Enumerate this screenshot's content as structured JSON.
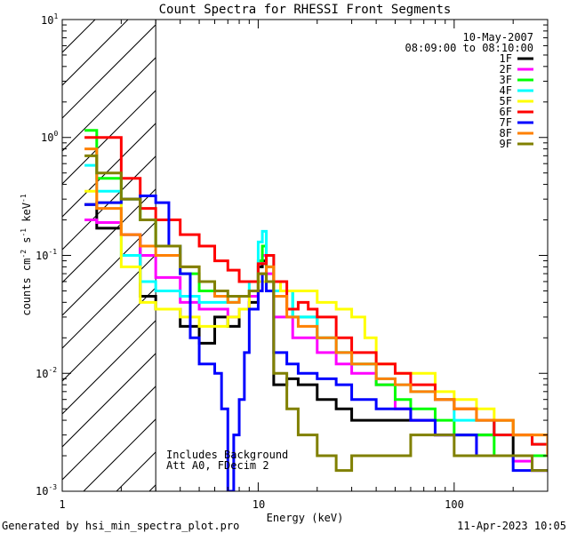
{
  "chart_data": {
    "type": "line",
    "title": "Count Spectra for RHESSI Front Segments",
    "xlabel": "Energy (keV)",
    "ylabel_parts": [
      "counts cm",
      "-2",
      " s",
      "-1",
      " keV",
      "-1"
    ],
    "x_scale": "log",
    "y_scale": "log",
    "xlim": [
      1,
      300
    ],
    "ylim": [
      0.001,
      10
    ],
    "x_ticks": [
      {
        "v": 1,
        "label": "1"
      },
      {
        "v": 10,
        "label": "10"
      },
      {
        "v": 100,
        "label": "100"
      }
    ],
    "y_ticks": [
      {
        "v": 0.001,
        "base": "10",
        "exp": "-3"
      },
      {
        "v": 0.01,
        "base": "10",
        "exp": "-2"
      },
      {
        "v": 0.1,
        "base": "10",
        "exp": "-1"
      },
      {
        "v": 1,
        "base": "10",
        "exp": "0"
      },
      {
        "v": 10,
        "base": "10",
        "exp": "1"
      }
    ],
    "hatch_region": {
      "x_from": 1,
      "x_to": 3
    },
    "date": "10-May-2007",
    "time_range": "08:09:00 to 08:10:00",
    "notes": [
      "Includes Background",
      "Att A0, FDecim 2"
    ],
    "series": [
      {
        "name": "1F",
        "color": "#000000",
        "points": [
          [
            1.3,
            0.27
          ],
          [
            1.5,
            0.17
          ],
          [
            2,
            0.15
          ],
          [
            2.5,
            0.045
          ],
          [
            3,
            0.035
          ],
          [
            4,
            0.025
          ],
          [
            5,
            0.018
          ],
          [
            6,
            0.03
          ],
          [
            7,
            0.025
          ],
          [
            8,
            0.035
          ],
          [
            9,
            0.04
          ],
          [
            10,
            0.08
          ],
          [
            10.5,
            0.09
          ],
          [
            11,
            0.06
          ],
          [
            12,
            0.008
          ],
          [
            14,
            0.009
          ],
          [
            16,
            0.008
          ],
          [
            20,
            0.006
          ],
          [
            25,
            0.005
          ],
          [
            30,
            0.004
          ],
          [
            40,
            0.004
          ],
          [
            50,
            0.004
          ],
          [
            60,
            0.004
          ],
          [
            80,
            0.003
          ],
          [
            100,
            0.003
          ],
          [
            130,
            0.003
          ],
          [
            160,
            0.004
          ],
          [
            200,
            0.002
          ],
          [
            250,
            0.002
          ],
          [
            300,
            0.002
          ]
        ]
      },
      {
        "name": "2F",
        "color": "#ff00ff",
        "points": [
          [
            1.3,
            0.2
          ],
          [
            1.5,
            0.19
          ],
          [
            2,
            0.15
          ],
          [
            2.5,
            0.1
          ],
          [
            3,
            0.065
          ],
          [
            4,
            0.04
          ],
          [
            5,
            0.035
          ],
          [
            6,
            0.035
          ],
          [
            7,
            0.03
          ],
          [
            8,
            0.035
          ],
          [
            9,
            0.045
          ],
          [
            10,
            0.085
          ],
          [
            10.5,
            0.1
          ],
          [
            11,
            0.07
          ],
          [
            12,
            0.03
          ],
          [
            15,
            0.02
          ],
          [
            20,
            0.015
          ],
          [
            25,
            0.012
          ],
          [
            30,
            0.01
          ],
          [
            40,
            0.008
          ],
          [
            50,
            0.005
          ],
          [
            60,
            0.004
          ],
          [
            80,
            0.003
          ],
          [
            100,
            0.003
          ],
          [
            130,
            0.002
          ],
          [
            160,
            0.002
          ],
          [
            200,
            0.0018
          ],
          [
            250,
            0.0015
          ],
          [
            300,
            0.0015
          ]
        ]
      },
      {
        "name": "3F",
        "color": "#00ff00",
        "points": [
          [
            1.3,
            1.15
          ],
          [
            1.5,
            0.45
          ],
          [
            2,
            0.3
          ],
          [
            2.5,
            0.2
          ],
          [
            3,
            0.12
          ],
          [
            4,
            0.07
          ],
          [
            5,
            0.05
          ],
          [
            6,
            0.045
          ],
          [
            7,
            0.04
          ],
          [
            8,
            0.045
          ],
          [
            9,
            0.05
          ],
          [
            10,
            0.09
          ],
          [
            10.5,
            0.12
          ],
          [
            11,
            0.08
          ],
          [
            12,
            0.05
          ],
          [
            15,
            0.03
          ],
          [
            20,
            0.02
          ],
          [
            25,
            0.015
          ],
          [
            30,
            0.012
          ],
          [
            40,
            0.008
          ],
          [
            50,
            0.006
          ],
          [
            60,
            0.005
          ],
          [
            80,
            0.004
          ],
          [
            100,
            0.003
          ],
          [
            130,
            0.003
          ],
          [
            160,
            0.002
          ],
          [
            200,
            0.002
          ],
          [
            250,
            0.002
          ],
          [
            300,
            0.002
          ]
        ]
      },
      {
        "name": "4F",
        "color": "#00ffff",
        "points": [
          [
            1.3,
            0.58
          ],
          [
            1.5,
            0.35
          ],
          [
            2,
            0.1
          ],
          [
            2.5,
            0.06
          ],
          [
            3,
            0.05
          ],
          [
            4,
            0.045
          ],
          [
            5,
            0.04
          ],
          [
            6,
            0.04
          ],
          [
            7,
            0.04
          ],
          [
            8,
            0.045
          ],
          [
            9,
            0.06
          ],
          [
            10,
            0.13
          ],
          [
            10.5,
            0.16
          ],
          [
            11,
            0.1
          ],
          [
            12,
            0.05
          ],
          [
            15,
            0.03
          ],
          [
            20,
            0.02
          ],
          [
            25,
            0.015
          ],
          [
            30,
            0.012
          ],
          [
            40,
            0.009
          ],
          [
            50,
            0.008
          ],
          [
            60,
            0.007
          ],
          [
            80,
            0.006
          ],
          [
            100,
            0.004
          ],
          [
            130,
            0.004
          ],
          [
            160,
            0.003
          ],
          [
            200,
            0.003
          ],
          [
            250,
            0.0025
          ],
          [
            300,
            0.002
          ]
        ]
      },
      {
        "name": "5F",
        "color": "#ffff00",
        "points": [
          [
            1.3,
            0.35
          ],
          [
            1.5,
            0.28
          ],
          [
            2,
            0.08
          ],
          [
            2.5,
            0.04
          ],
          [
            3,
            0.035
          ],
          [
            4,
            0.03
          ],
          [
            5,
            0.025
          ],
          [
            6,
            0.025
          ],
          [
            7,
            0.03
          ],
          [
            8,
            0.035
          ],
          [
            9,
            0.05
          ],
          [
            10,
            0.06
          ],
          [
            11,
            0.06
          ],
          [
            13,
            0.05
          ],
          [
            15,
            0.05
          ],
          [
            20,
            0.04
          ],
          [
            25,
            0.035
          ],
          [
            30,
            0.03
          ],
          [
            35,
            0.02
          ],
          [
            40,
            0.012
          ],
          [
            50,
            0.01
          ],
          [
            60,
            0.01
          ],
          [
            80,
            0.007
          ],
          [
            100,
            0.006
          ],
          [
            130,
            0.005
          ],
          [
            160,
            0.004
          ],
          [
            200,
            0.003
          ],
          [
            250,
            0.003
          ],
          [
            300,
            0.002
          ]
        ]
      },
      {
        "name": "6F",
        "color": "#ff0000",
        "points": [
          [
            1.3,
            1.0
          ],
          [
            1.5,
            1.0
          ],
          [
            2,
            0.45
          ],
          [
            2.5,
            0.25
          ],
          [
            3,
            0.2
          ],
          [
            4,
            0.15
          ],
          [
            5,
            0.12
          ],
          [
            6,
            0.09
          ],
          [
            7,
            0.075
          ],
          [
            8,
            0.06
          ],
          [
            9,
            0.06
          ],
          [
            10,
            0.085
          ],
          [
            11,
            0.1
          ],
          [
            12,
            0.06
          ],
          [
            14,
            0.035
          ],
          [
            16,
            0.04
          ],
          [
            18,
            0.035
          ],
          [
            20,
            0.03
          ],
          [
            25,
            0.02
          ],
          [
            30,
            0.015
          ],
          [
            40,
            0.012
          ],
          [
            50,
            0.01
          ],
          [
            60,
            0.008
          ],
          [
            80,
            0.006
          ],
          [
            100,
            0.005
          ],
          [
            130,
            0.004
          ],
          [
            160,
            0.003
          ],
          [
            200,
            0.003
          ],
          [
            250,
            0.0025
          ],
          [
            300,
            0.002
          ]
        ]
      },
      {
        "name": "7F",
        "color": "#0000ff",
        "points": [
          [
            1.3,
            0.27
          ],
          [
            1.5,
            0.28
          ],
          [
            2,
            0.3
          ],
          [
            2.5,
            0.32
          ],
          [
            3,
            0.28
          ],
          [
            3.5,
            0.12
          ],
          [
            4,
            0.07
          ],
          [
            4.5,
            0.02
          ],
          [
            5,
            0.012
          ],
          [
            6,
            0.01
          ],
          [
            6.5,
            0.005
          ],
          [
            7,
            0.001
          ],
          [
            7.5,
            0.003
          ],
          [
            8,
            0.006
          ],
          [
            8.5,
            0.015
          ],
          [
            9,
            0.035
          ],
          [
            10,
            0.05
          ],
          [
            10.5,
            0.07
          ],
          [
            11,
            0.05
          ],
          [
            12,
            0.015
          ],
          [
            14,
            0.012
          ],
          [
            16,
            0.01
          ],
          [
            20,
            0.009
          ],
          [
            25,
            0.008
          ],
          [
            30,
            0.006
          ],
          [
            40,
            0.005
          ],
          [
            50,
            0.005
          ],
          [
            60,
            0.004
          ],
          [
            80,
            0.003
          ],
          [
            100,
            0.003
          ],
          [
            130,
            0.002
          ],
          [
            160,
            0.002
          ],
          [
            200,
            0.0015
          ],
          [
            250,
            0.0015
          ],
          [
            300,
            0.0015
          ]
        ]
      },
      {
        "name": "8F",
        "color": "#ff8000",
        "points": [
          [
            1.3,
            0.8
          ],
          [
            1.5,
            0.25
          ],
          [
            2,
            0.15
          ],
          [
            2.5,
            0.12
          ],
          [
            3,
            0.1
          ],
          [
            4,
            0.08
          ],
          [
            5,
            0.06
          ],
          [
            6,
            0.045
          ],
          [
            7,
            0.04
          ],
          [
            8,
            0.045
          ],
          [
            9,
            0.05
          ],
          [
            10,
            0.07
          ],
          [
            11,
            0.08
          ],
          [
            12,
            0.045
          ],
          [
            14,
            0.03
          ],
          [
            16,
            0.025
          ],
          [
            20,
            0.02
          ],
          [
            25,
            0.015
          ],
          [
            30,
            0.012
          ],
          [
            40,
            0.009
          ],
          [
            50,
            0.008
          ],
          [
            60,
            0.007
          ],
          [
            80,
            0.006
          ],
          [
            100,
            0.005
          ],
          [
            130,
            0.004
          ],
          [
            160,
            0.004
          ],
          [
            200,
            0.003
          ],
          [
            250,
            0.003
          ],
          [
            300,
            0.002
          ]
        ]
      },
      {
        "name": "9F",
        "color": "#808000",
        "points": [
          [
            1.3,
            0.7
          ],
          [
            1.5,
            0.5
          ],
          [
            2,
            0.3
          ],
          [
            2.5,
            0.2
          ],
          [
            3,
            0.12
          ],
          [
            4,
            0.08
          ],
          [
            5,
            0.06
          ],
          [
            6,
            0.05
          ],
          [
            7,
            0.045
          ],
          [
            8,
            0.045
          ],
          [
            9,
            0.05
          ],
          [
            10,
            0.07
          ],
          [
            11,
            0.06
          ],
          [
            12,
            0.01
          ],
          [
            14,
            0.005
          ],
          [
            16,
            0.003
          ],
          [
            20,
            0.002
          ],
          [
            25,
            0.0015
          ],
          [
            30,
            0.002
          ],
          [
            40,
            0.002
          ],
          [
            50,
            0.002
          ],
          [
            60,
            0.003
          ],
          [
            80,
            0.003
          ],
          [
            100,
            0.002
          ],
          [
            130,
            0.002
          ],
          [
            160,
            0.002
          ],
          [
            200,
            0.002
          ],
          [
            250,
            0.0015
          ],
          [
            300,
            0.0015
          ]
        ]
      }
    ]
  },
  "footer": {
    "generated_by": "Generated by hsi_min_spectra_plot.pro",
    "timestamp": "11-Apr-2023 10:05"
  }
}
